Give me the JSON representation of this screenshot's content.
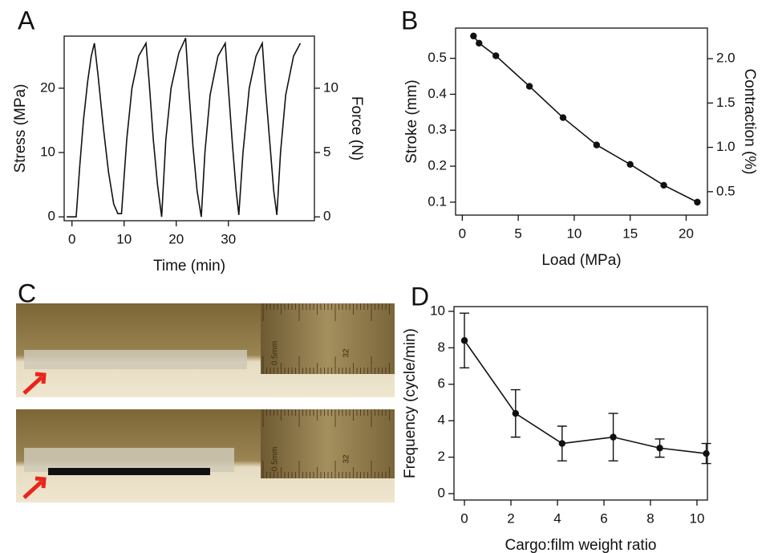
{
  "chart_data": [
    {
      "type": "line",
      "panel_label": "A",
      "xlabel": "Time (min)",
      "ylabel": "Stress (MPa)",
      "y2label": "Force (N)",
      "x": [
        -1,
        0.8,
        1.5,
        2.2,
        3,
        3.7,
        4.3,
        5,
        6,
        7,
        8,
        8.8,
        9.5,
        10.5,
        11.5,
        12.8,
        14.2,
        14.8,
        15.6,
        16.4,
        17.2,
        18,
        19,
        20.5,
        21.8,
        22.4,
        23.2,
        24,
        24.8,
        25.5,
        26.5,
        28,
        29.4,
        30,
        30.8,
        31.5,
        32,
        32.8,
        34,
        35.3,
        36.5,
        37.1,
        38,
        38.7,
        39.3,
        40,
        41,
        42.5,
        43.8
      ],
      "values": [
        0,
        0,
        8,
        15,
        21,
        25,
        27,
        22,
        14,
        7,
        2,
        0.5,
        0.5,
        12,
        20,
        25,
        27,
        21,
        12,
        5,
        0,
        12,
        20,
        25.5,
        27.8,
        20,
        11,
        4,
        0,
        10,
        19,
        25,
        27,
        20,
        11,
        4,
        0.3,
        10,
        20,
        25,
        27,
        20,
        11,
        4,
        0.3,
        10,
        19,
        25,
        27
      ],
      "color": "#111111",
      "markers": false,
      "xlim": [
        -1.5,
        46.5
      ],
      "ylim": [
        -0.6,
        28.1
      ],
      "y2lim": [
        -0.3,
        14.05
      ],
      "xticks": [
        0,
        10,
        20,
        30
      ],
      "yticks": [
        0,
        10,
        20
      ],
      "y2ticks": [
        0,
        5,
        10
      ]
    },
    {
      "type": "line",
      "panel_label": "B",
      "xlabel": "Load (MPa)",
      "ylabel": "Stroke (mm)",
      "y2label": "Contraction (%)",
      "x": [
        1,
        1.5,
        3,
        6,
        9,
        12,
        15,
        18,
        21
      ],
      "values": [
        0.562,
        0.542,
        0.507,
        0.422,
        0.335,
        0.259,
        0.205,
        0.147,
        0.1
      ],
      "color": "#111111",
      "markers": true,
      "xlim": [
        -0.6,
        21.9
      ],
      "ylim": [
        0.064,
        0.584
      ],
      "y2lim": [
        0.236,
        2.345
      ],
      "xticks": [
        0,
        5,
        10,
        15,
        20
      ],
      "yticks": [
        0.1,
        0.2,
        0.3,
        0.4,
        0.5
      ],
      "y2ticks": [
        0.5,
        {
          "value": 1,
          "label": "1.0"
        },
        1.5,
        {
          "value": 2,
          "label": "2.0"
        }
      ]
    },
    {
      "type": "line",
      "panel_label": "D",
      "xlabel": "Cargo:film weight ratio",
      "ylabel": "Frequency (cycle/min)",
      "x": [
        0,
        2.2,
        4.2,
        6.4,
        8.4,
        10.4
      ],
      "values": [
        8.4,
        4.4,
        2.75,
        3.1,
        2.5,
        2.2
      ],
      "errors": [
        1.5,
        1.3,
        0.95,
        1.3,
        0.5,
        0.55
      ],
      "color": "#111111",
      "markers": true,
      "xlim": [
        -0.45,
        10.45
      ],
      "ylim": [
        -0.35,
        10.26
      ],
      "xticks": [
        0,
        2,
        4,
        6,
        8,
        10
      ],
      "yticks": [
        0,
        2,
        4,
        6,
        8,
        10
      ]
    }
  ],
  "panel_c": {
    "label": "C",
    "photos": [
      {
        "ruler_labels": [
          "0.5mm",
          "32"
        ]
      },
      {
        "ruler_labels": [
          "0.5mm",
          "32"
        ]
      }
    ]
  }
}
